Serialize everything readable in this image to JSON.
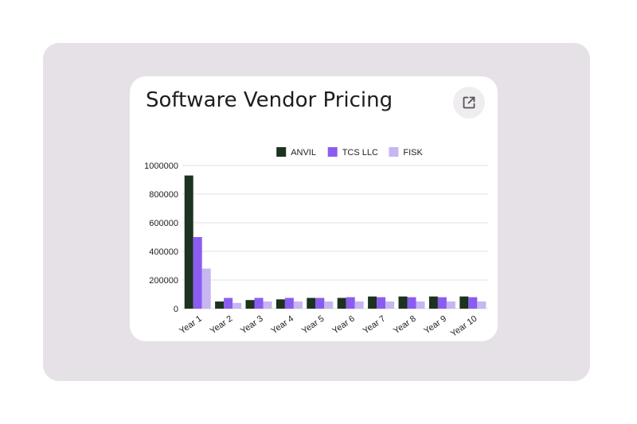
{
  "card": {
    "title": "Software Vendor Pricing",
    "open_icon": "open-in-new-icon"
  },
  "colors": {
    "outer_background": "#e6e1e7",
    "card_background": "#ffffff",
    "gridline": "#e0e0e0"
  },
  "chart_data": {
    "type": "bar",
    "title": "",
    "xlabel": "",
    "ylabel": "",
    "categories": [
      "Year 1",
      "Year 2",
      "Year 3",
      "Year 4",
      "Year 5",
      "Year 6",
      "Year 7",
      "Year 8",
      "Year 9",
      "Year 10"
    ],
    "series": [
      {
        "name": "ANVIL",
        "color": "#1c3320",
        "values": [
          930000,
          50000,
          60000,
          65000,
          75000,
          75000,
          85000,
          85000,
          85000,
          85000
        ]
      },
      {
        "name": "TCS LLC",
        "color": "#8b5cf0",
        "values": [
          500000,
          75000,
          75000,
          75000,
          75000,
          80000,
          80000,
          80000,
          80000,
          80000
        ]
      },
      {
        "name": "FISK",
        "color": "#c6b6f2",
        "values": [
          280000,
          40000,
          50000,
          50000,
          50000,
          50000,
          50000,
          50000,
          50000,
          50000
        ]
      }
    ],
    "ylim": [
      0,
      1000000
    ],
    "yticks": [
      "0",
      "200000",
      "400000",
      "600000",
      "800000",
      "1000000"
    ],
    "grid": true,
    "legend_position": "top-center"
  }
}
